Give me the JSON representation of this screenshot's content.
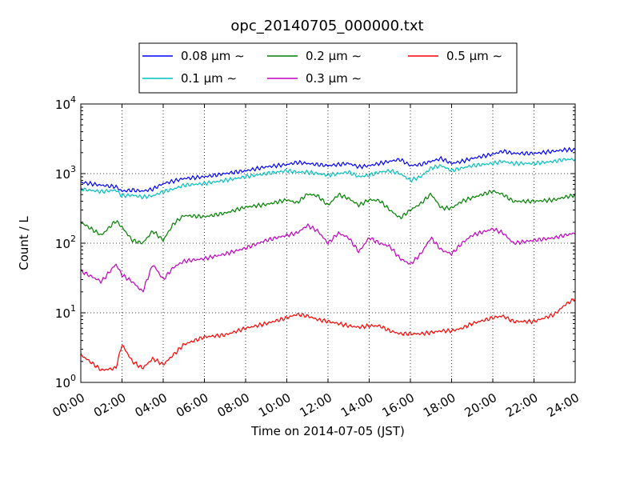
{
  "chart_data": {
    "type": "line",
    "title": "opc_20140705_000000.txt",
    "xlabel": "Time on 2014-07-05 (JST)",
    "ylabel": "Count / L",
    "yscale": "log",
    "ylim": [
      1,
      10000
    ],
    "xlim": [
      0,
      24
    ],
    "grid": true,
    "legend_position": "top-center",
    "x_ticks": [
      "00:00",
      "02:00",
      "04:00",
      "06:00",
      "08:00",
      "10:00",
      "12:00",
      "14:00",
      "16:00",
      "18:00",
      "20:00",
      "22:00",
      "24:00"
    ],
    "y_ticks": [
      {
        "base": "10",
        "exp": "0",
        "value": 1
      },
      {
        "base": "10",
        "exp": "1",
        "value": 10
      },
      {
        "base": "10",
        "exp": "2",
        "value": 100
      },
      {
        "base": "10",
        "exp": "3",
        "value": 1000
      },
      {
        "base": "10",
        "exp": "4",
        "value": 10000
      }
    ],
    "x": [
      0,
      1,
      1.7,
      2,
      2.5,
      3,
      3.5,
      4,
      4.5,
      5,
      6,
      7,
      8,
      9,
      10,
      10.5,
      11,
      11.5,
      12,
      12.5,
      13,
      13.5,
      14,
      14.5,
      15,
      15.5,
      16,
      16.5,
      17,
      17.5,
      18,
      18.5,
      19,
      20,
      20.5,
      21,
      22,
      23,
      23.5,
      24
    ],
    "series": [
      {
        "name": "0.08 μm ∼",
        "color": "#0000ff",
        "values": [
          750,
          680,
          650,
          560,
          580,
          560,
          600,
          720,
          780,
          850,
          900,
          1000,
          1100,
          1250,
          1350,
          1450,
          1400,
          1350,
          1300,
          1350,
          1400,
          1250,
          1300,
          1400,
          1500,
          1600,
          1300,
          1350,
          1500,
          1650,
          1400,
          1500,
          1650,
          1900,
          2100,
          1950,
          1950,
          2100,
          2200,
          2200
        ]
      },
      {
        "name": "0.1 μm ∼",
        "color": "#00bfbf",
        "values": [
          600,
          550,
          580,
          480,
          490,
          460,
          480,
          550,
          600,
          680,
          720,
          800,
          900,
          1000,
          1100,
          1050,
          1050,
          1000,
          950,
          1000,
          1050,
          900,
          950,
          1050,
          1100,
          1000,
          800,
          900,
          1200,
          1300,
          1100,
          1200,
          1300,
          1400,
          1500,
          1400,
          1400,
          1500,
          1600,
          1600
        ]
      },
      {
        "name": "0.2 μm ∼",
        "color": "#008000",
        "values": [
          200,
          130,
          210,
          170,
          110,
          100,
          150,
          110,
          190,
          250,
          240,
          270,
          330,
          360,
          420,
          380,
          510,
          480,
          350,
          500,
          440,
          350,
          420,
          410,
          300,
          230,
          300,
          370,
          510,
          320,
          320,
          400,
          450,
          560,
          500,
          400,
          400,
          420,
          460,
          490
        ]
      },
      {
        "name": "0.3 μm ∼",
        "color": "#bf00bf",
        "values": [
          40,
          28,
          50,
          35,
          28,
          20,
          50,
          30,
          45,
          55,
          60,
          70,
          85,
          110,
          130,
          140,
          180,
          150,
          100,
          140,
          120,
          75,
          120,
          100,
          90,
          60,
          50,
          70,
          120,
          80,
          70,
          100,
          130,
          160,
          140,
          100,
          110,
          120,
          130,
          140
        ]
      },
      {
        "name": "0.5 μm ∼",
        "color": "#ff0000",
        "values": [
          2.5,
          1.5,
          1.6,
          3.5,
          2,
          1.6,
          2.2,
          1.8,
          2.5,
          3.5,
          4.5,
          4.8,
          6,
          7,
          8.5,
          9.5,
          9,
          8,
          7.5,
          7,
          6.5,
          6.2,
          6.5,
          6.5,
          5.5,
          5,
          5,
          5,
          5.2,
          5.5,
          5.5,
          6,
          7,
          8.5,
          9,
          7.5,
          7.5,
          9.5,
          13,
          16
        ]
      }
    ]
  }
}
